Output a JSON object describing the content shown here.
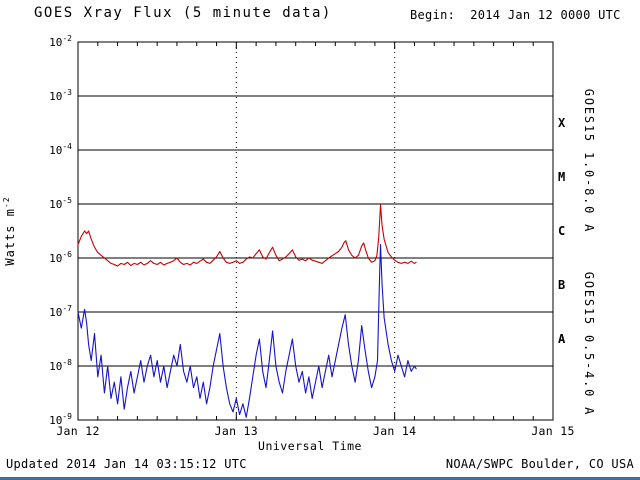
{
  "header": {
    "title": "GOES Xray Flux (5 minute data)",
    "begin": "Begin:  2014 Jan 12 0000 UTC"
  },
  "footer": {
    "updated": "Updated 2014 Jan 14 03:15:12 UTC",
    "credit": "NOAA/SWPC Boulder, CO USA"
  },
  "axes": {
    "xlabel": "Universal Time",
    "ylabel_base": "Watts m",
    "ylabel_sup": "-2",
    "x_ticks": [
      {
        "label": "Jan 12",
        "hours": 0
      },
      {
        "label": "Jan 13",
        "hours": 24
      },
      {
        "label": "Jan 14",
        "hours": 48
      },
      {
        "label": "Jan 15",
        "hours": 72
      }
    ],
    "y_tick_exponents": [
      -2,
      -3,
      -4,
      -5,
      -6,
      -7,
      -8,
      -9
    ],
    "flare_classes": [
      {
        "label": "X",
        "band": [
          -4,
          -3
        ]
      },
      {
        "label": "M",
        "band": [
          -5,
          -4
        ]
      },
      {
        "label": "C",
        "band": [
          -6,
          -5
        ]
      },
      {
        "label": "B",
        "band": [
          -7,
          -6
        ]
      },
      {
        "label": "A",
        "band": [
          -8,
          -7
        ]
      }
    ]
  },
  "legend_right": [
    {
      "text": "GOES15 1.0-8.0 A",
      "color": "#c80000"
    },
    {
      "text": "GOES15 0.5-4.0 A",
      "color": "#1414c8"
    }
  ],
  "colors": {
    "red": "#c80000",
    "blue": "#1414c8",
    "frame": "#000000",
    "background": "#ffffff",
    "bottom_bar": "#3d6ea5"
  },
  "chart_data": {
    "type": "line",
    "title": "GOES Xray Flux (5 minute data)",
    "xlabel": "Universal Time",
    "ylabel": "Watts m-2",
    "x_unit": "hours since 2014 Jan 12 0000 UTC",
    "x_tick_labels": [
      "Jan 12",
      "Jan 13",
      "Jan 14",
      "Jan 15"
    ],
    "xlim_hours": [
      0,
      72
    ],
    "y_scale": "log10",
    "y_log10_range": [
      -9,
      -2
    ],
    "grid": {
      "horizontal": "solid line per decade",
      "vertical": "dotted line per day"
    },
    "legend_position": "right-rotated",
    "series": [
      {
        "name": "GOES15 1.0-8.0 A",
        "wavelength": "1.0-8.0 A",
        "color": "#c80000",
        "points_log10": [
          [
            0,
            -5.75
          ],
          [
            0.5,
            -5.6
          ],
          [
            1,
            -5.5
          ],
          [
            1.3,
            -5.55
          ],
          [
            1.6,
            -5.5
          ],
          [
            2,
            -5.65
          ],
          [
            2.5,
            -5.8
          ],
          [
            3,
            -5.9
          ],
          [
            3.5,
            -5.95
          ],
          [
            4,
            -6
          ],
          [
            4.5,
            -6.05
          ],
          [
            5,
            -6.1
          ],
          [
            5.5,
            -6.12
          ],
          [
            6,
            -6.15
          ],
          [
            6.5,
            -6.1
          ],
          [
            7,
            -6.12
          ],
          [
            7.5,
            -6.08
          ],
          [
            8,
            -6.14
          ],
          [
            8.5,
            -6.1
          ],
          [
            9,
            -6.12
          ],
          [
            9.5,
            -6.08
          ],
          [
            10,
            -6.13
          ],
          [
            10.5,
            -6.1
          ],
          [
            11,
            -6.05
          ],
          [
            11.5,
            -6.1
          ],
          [
            12,
            -6.12
          ],
          [
            12.5,
            -6.08
          ],
          [
            13,
            -6.13
          ],
          [
            13.5,
            -6.1
          ],
          [
            14,
            -6.08
          ],
          [
            14.5,
            -6.05
          ],
          [
            15,
            -6
          ],
          [
            15.5,
            -6.08
          ],
          [
            16,
            -6.12
          ],
          [
            16.5,
            -6.1
          ],
          [
            17,
            -6.13
          ],
          [
            17.5,
            -6.08
          ],
          [
            18,
            -6.1
          ],
          [
            18.5,
            -6.06
          ],
          [
            19,
            -6.02
          ],
          [
            19.5,
            -6.08
          ],
          [
            20,
            -6.1
          ],
          [
            20.5,
            -6.04
          ],
          [
            21,
            -5.98
          ],
          [
            21.5,
            -5.88
          ],
          [
            22,
            -6
          ],
          [
            22.5,
            -6.08
          ],
          [
            23,
            -6.1
          ],
          [
            23.5,
            -6.08
          ],
          [
            24,
            -6.05
          ],
          [
            24.5,
            -6.1
          ],
          [
            25,
            -6.08
          ],
          [
            25.5,
            -6.02
          ],
          [
            26,
            -5.98
          ],
          [
            26.5,
            -6
          ],
          [
            27,
            -5.92
          ],
          [
            27.5,
            -5.85
          ],
          [
            28,
            -5.98
          ],
          [
            28.5,
            -6.02
          ],
          [
            29,
            -5.9
          ],
          [
            29.5,
            -5.8
          ],
          [
            30,
            -5.95
          ],
          [
            30.5,
            -6.05
          ],
          [
            31,
            -6.02
          ],
          [
            31.5,
            -5.98
          ],
          [
            32,
            -5.92
          ],
          [
            32.5,
            -5.85
          ],
          [
            33,
            -5.98
          ],
          [
            33.5,
            -6.04
          ],
          [
            34,
            -6.02
          ],
          [
            34.5,
            -6.05
          ],
          [
            35,
            -6
          ],
          [
            35.5,
            -6.04
          ],
          [
            36,
            -6.06
          ],
          [
            36.5,
            -6.08
          ],
          [
            37,
            -6.1
          ],
          [
            37.5,
            -6.05
          ],
          [
            38,
            -6
          ],
          [
            38.5,
            -5.96
          ],
          [
            39,
            -5.92
          ],
          [
            39.5,
            -5.88
          ],
          [
            40,
            -5.8
          ],
          [
            40.3,
            -5.72
          ],
          [
            40.6,
            -5.68
          ],
          [
            41,
            -5.85
          ],
          [
            41.5,
            -5.95
          ],
          [
            42,
            -6
          ],
          [
            42.5,
            -5.95
          ],
          [
            43,
            -5.78
          ],
          [
            43.3,
            -5.72
          ],
          [
            43.6,
            -5.85
          ],
          [
            44,
            -6
          ],
          [
            44.5,
            -6.08
          ],
          [
            45,
            -6.05
          ],
          [
            45.3,
            -5.95
          ],
          [
            45.6,
            -5.6
          ],
          [
            45.85,
            -5.02
          ],
          [
            46.1,
            -5.4
          ],
          [
            46.4,
            -5.65
          ],
          [
            47,
            -5.9
          ],
          [
            47.5,
            -5.98
          ],
          [
            48,
            -6.04
          ],
          [
            48.5,
            -6.08
          ],
          [
            49,
            -6.1
          ],
          [
            49.5,
            -6.08
          ],
          [
            50,
            -6.1
          ],
          [
            50.5,
            -6.06
          ],
          [
            51,
            -6.1
          ],
          [
            51.25,
            -6.08
          ]
        ]
      },
      {
        "name": "GOES15 0.5-4.0 A",
        "wavelength": "0.5-4.0 A",
        "color": "#1414c8",
        "points_log10": [
          [
            0,
            -7
          ],
          [
            0.5,
            -7.3
          ],
          [
            1,
            -6.95
          ],
          [
            1.3,
            -7.2
          ],
          [
            1.6,
            -7.6
          ],
          [
            2,
            -7.9
          ],
          [
            2.5,
            -7.4
          ],
          [
            3,
            -8.2
          ],
          [
            3.5,
            -7.8
          ],
          [
            4,
            -8.5
          ],
          [
            4.5,
            -8
          ],
          [
            5,
            -8.6
          ],
          [
            5.5,
            -8.3
          ],
          [
            6,
            -8.7
          ],
          [
            6.5,
            -8.2
          ],
          [
            7,
            -8.8
          ],
          [
            7.5,
            -8.4
          ],
          [
            8,
            -8.1
          ],
          [
            8.5,
            -8.5
          ],
          [
            9,
            -8.2
          ],
          [
            9.5,
            -7.9
          ],
          [
            10,
            -8.3
          ],
          [
            10.5,
            -8
          ],
          [
            11,
            -7.8
          ],
          [
            11.5,
            -8.2
          ],
          [
            12,
            -7.9
          ],
          [
            12.5,
            -8.3
          ],
          [
            13,
            -8
          ],
          [
            13.5,
            -8.4
          ],
          [
            14,
            -8.1
          ],
          [
            14.5,
            -7.8
          ],
          [
            15,
            -8
          ],
          [
            15.5,
            -7.6
          ],
          [
            16,
            -8.1
          ],
          [
            16.5,
            -8.3
          ],
          [
            17,
            -8
          ],
          [
            17.5,
            -8.4
          ],
          [
            18,
            -8.2
          ],
          [
            18.5,
            -8.6
          ],
          [
            19,
            -8.3
          ],
          [
            19.5,
            -8.7
          ],
          [
            20,
            -8.4
          ],
          [
            20.5,
            -8
          ],
          [
            21,
            -7.7
          ],
          [
            21.5,
            -7.4
          ],
          [
            22,
            -8
          ],
          [
            22.5,
            -8.4
          ],
          [
            23,
            -8.7
          ],
          [
            23.5,
            -8.85
          ],
          [
            24,
            -8.6
          ],
          [
            24.5,
            -8.9
          ],
          [
            25,
            -8.7
          ],
          [
            25.5,
            -8.95
          ],
          [
            26,
            -8.6
          ],
          [
            26.5,
            -8.2
          ],
          [
            27,
            -7.8
          ],
          [
            27.5,
            -7.5
          ],
          [
            28,
            -8.1
          ],
          [
            28.5,
            -8.4
          ],
          [
            29,
            -7.9
          ],
          [
            29.5,
            -7.35
          ],
          [
            30,
            -8
          ],
          [
            30.5,
            -8.3
          ],
          [
            31,
            -8.5
          ],
          [
            31.5,
            -8.1
          ],
          [
            32,
            -7.8
          ],
          [
            32.5,
            -7.5
          ],
          [
            33,
            -8
          ],
          [
            33.5,
            -8.3
          ],
          [
            34,
            -8.1
          ],
          [
            34.5,
            -8.5
          ],
          [
            35,
            -8.2
          ],
          [
            35.5,
            -8.6
          ],
          [
            36,
            -8.3
          ],
          [
            36.5,
            -8
          ],
          [
            37,
            -8.4
          ],
          [
            37.5,
            -8.1
          ],
          [
            38,
            -7.8
          ],
          [
            38.5,
            -8.2
          ],
          [
            39,
            -7.9
          ],
          [
            39.5,
            -7.6
          ],
          [
            40,
            -7.3
          ],
          [
            40.5,
            -7.05
          ],
          [
            41,
            -7.6
          ],
          [
            41.5,
            -8
          ],
          [
            42,
            -8.3
          ],
          [
            42.5,
            -7.9
          ],
          [
            43,
            -7.25
          ],
          [
            43.5,
            -7.7
          ],
          [
            44,
            -8.1
          ],
          [
            44.5,
            -8.4
          ],
          [
            45,
            -8.2
          ],
          [
            45.4,
            -7.9
          ],
          [
            45.7,
            -6.4
          ],
          [
            45.85,
            -5.75
          ],
          [
            46.1,
            -6.5
          ],
          [
            46.4,
            -7.1
          ],
          [
            47,
            -7.6
          ],
          [
            47.5,
            -7.9
          ],
          [
            48,
            -8.1
          ],
          [
            48.5,
            -7.8
          ],
          [
            49,
            -8
          ],
          [
            49.5,
            -8.2
          ],
          [
            50,
            -7.9
          ],
          [
            50.5,
            -8.1
          ],
          [
            51,
            -8
          ],
          [
            51.25,
            -8.05
          ]
        ]
      }
    ]
  }
}
